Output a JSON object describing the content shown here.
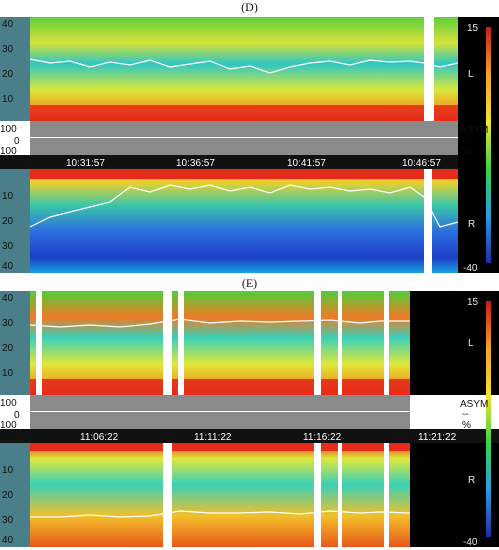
{
  "panels": [
    {
      "label": "(D)",
      "timestamps": [
        "10:31:57",
        "10:36:57",
        "10:41:57",
        "10:46:57"
      ],
      "left_axis_top": [
        "40",
        "30",
        "20",
        "10"
      ],
      "left_axis_mid": [
        "100",
        "0",
        "100"
      ],
      "left_axis_bottom": [
        "10",
        "20",
        "30",
        "40"
      ],
      "colorbar": {
        "max": "15",
        "min": "-40"
      },
      "channels": {
        "top": "L",
        "bottom": "R"
      },
      "asym": {
        "label": "ASYM",
        "value": "--",
        "unit": "%"
      }
    },
    {
      "label": "(E)",
      "timestamps": [
        "11:06:22",
        "11:11:22",
        "11:16:22",
        "11:21:22"
      ],
      "left_axis_top": [
        "40",
        "30",
        "20",
        "10"
      ],
      "left_axis_mid": [
        "100",
        "0",
        "100"
      ],
      "left_axis_bottom": [
        "10",
        "20",
        "30",
        "40"
      ],
      "colorbar": {
        "max": "15",
        "min": "-40"
      },
      "channels": {
        "top": "L",
        "bottom": "R"
      },
      "asym": {
        "label": "ASYM",
        "value": "--",
        "unit": "%"
      }
    }
  ],
  "colors": {
    "spectrogram_bg": "#3fc63f",
    "accent_red": "#e8261c",
    "gray_band": "#8a8a8a",
    "timebar": "#111111"
  }
}
